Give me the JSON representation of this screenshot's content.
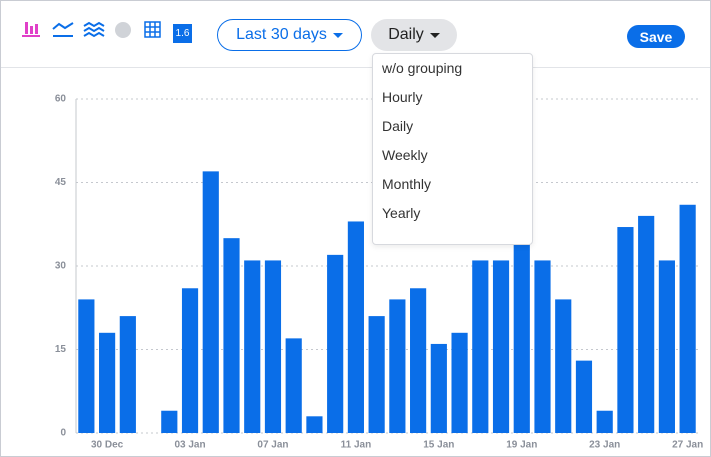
{
  "toolbar": {
    "badge": "1.6",
    "range": "Last 30 days",
    "grouping": "Daily",
    "save": "Save"
  },
  "dropdown": {
    "items": [
      "w/o grouping",
      "Hourly",
      "Daily",
      "Weekly",
      "Monthly",
      "Yearly"
    ]
  },
  "chart_data": {
    "type": "bar",
    "categories": [
      null,
      "30 Dec",
      null,
      null,
      null,
      "03 Jan",
      null,
      null,
      null,
      "07 Jan",
      null,
      null,
      null,
      "11 Jan",
      null,
      null,
      null,
      "15 Jan",
      null,
      null,
      null,
      "19 Jan",
      null,
      null,
      null,
      "23 Jan",
      null,
      null,
      null,
      "27 Jan"
    ],
    "values": [
      24,
      18,
      21,
      0,
      4,
      26,
      47,
      35,
      31,
      31,
      17,
      3,
      32,
      38,
      21,
      24,
      26,
      16,
      18,
      31,
      31,
      34,
      31,
      24,
      13,
      4,
      37,
      39,
      31,
      41
    ],
    "color": "#0a6ee8",
    "ylim": [
      0,
      60
    ],
    "yticks": [
      0,
      15,
      30,
      45,
      60
    ],
    "grid": true
  }
}
